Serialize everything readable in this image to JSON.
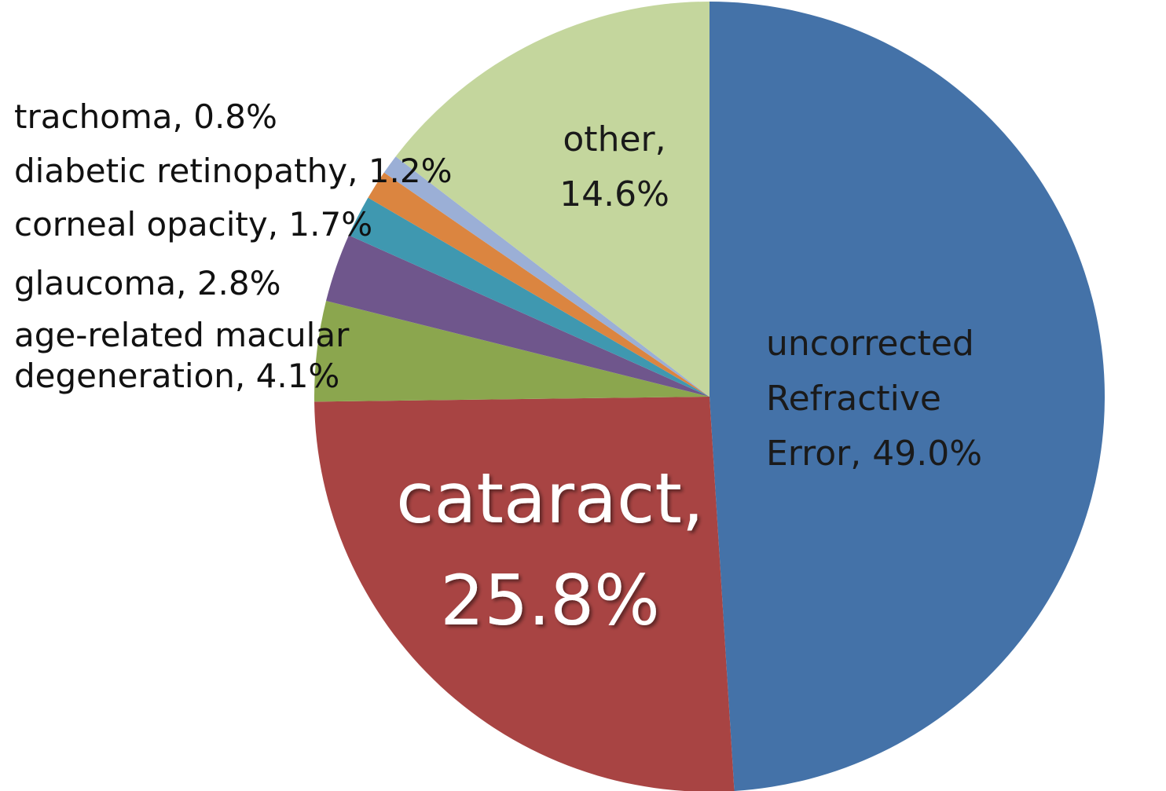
{
  "chart_data": {
    "type": "pie",
    "title": "",
    "start_angle_deg": 0,
    "direction": "clockwise",
    "slices": [
      {
        "name": "uncorrected Refractive Error",
        "value": 49.0,
        "label_lines": [
          "uncorrected",
          "Refractive",
          "Error, 49.0%"
        ],
        "color": "#4472A8"
      },
      {
        "name": "cataract",
        "value": 25.8,
        "label_lines": [
          "cataract,",
          "25.8%"
        ],
        "color": "#A84443"
      },
      {
        "name": "age-related macular degeneration",
        "value": 4.1,
        "label_lines": [
          "age-related macular",
          "degeneration, 4.1%"
        ],
        "color": "#8BA64E"
      },
      {
        "name": "glaucoma",
        "value": 2.8,
        "label_lines": [
          "glaucoma, 2.8%"
        ],
        "color": "#6F568C"
      },
      {
        "name": "corneal opacity",
        "value": 1.7,
        "label_lines": [
          "corneal opacity, 1.7%"
        ],
        "color": "#3F98B0"
      },
      {
        "name": "diabetic retinopathy",
        "value": 1.2,
        "label_lines": [
          "diabetic retinopathy, 1.2%"
        ],
        "color": "#DB8540"
      },
      {
        "name": "trachoma",
        "value": 0.8,
        "label_lines": [
          "trachoma, 0.8%"
        ],
        "color": "#9BAFD6"
      },
      {
        "name": "other",
        "value": 14.6,
        "label_lines": [
          "other,",
          "14.6%"
        ],
        "color": "#C4D69D"
      }
    ]
  }
}
